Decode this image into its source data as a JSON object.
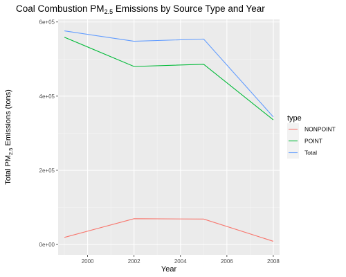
{
  "chart_data": {
    "type": "line",
    "title": {
      "prefix": "Coal Combustion PM",
      "sub": "2.5",
      "suffix": " Emissions by Source Type and Year"
    },
    "xlabel": "Year",
    "ylabel": {
      "prefix": "Total PM",
      "sub": "2.5",
      "suffix": " Emissions (tons)"
    },
    "x": [
      1999,
      2002,
      2005,
      2008
    ],
    "xlim": [
      1998.73,
      2008.27
    ],
    "ylim": [
      -28000,
      607000
    ],
    "x_ticks": [
      {
        "value": 2000,
        "label": "2000"
      },
      {
        "value": 2002,
        "label": "2002"
      },
      {
        "value": 2004,
        "label": "2004"
      },
      {
        "value": 2006,
        "label": "2006"
      },
      {
        "value": 2008,
        "label": "2008"
      }
    ],
    "y_ticks": [
      {
        "value": 0,
        "label": "0e+00"
      },
      {
        "value": 200000,
        "label": "2e+05"
      },
      {
        "value": 400000,
        "label": "4e+05"
      },
      {
        "value": 600000,
        "label": "6e+05"
      }
    ],
    "grid": true,
    "legend": {
      "title": "type",
      "position": "right"
    },
    "series": [
      {
        "name": "NONPOINT",
        "color": "#F8766D",
        "values": [
          19000,
          69500,
          68500,
          8500
        ]
      },
      {
        "name": "POINT",
        "color": "#00BA38",
        "values": [
          559000,
          480000,
          486000,
          336000
        ]
      },
      {
        "name": "Total",
        "color": "#619CFF",
        "values": [
          576000,
          548000,
          554000,
          344000
        ]
      }
    ]
  }
}
